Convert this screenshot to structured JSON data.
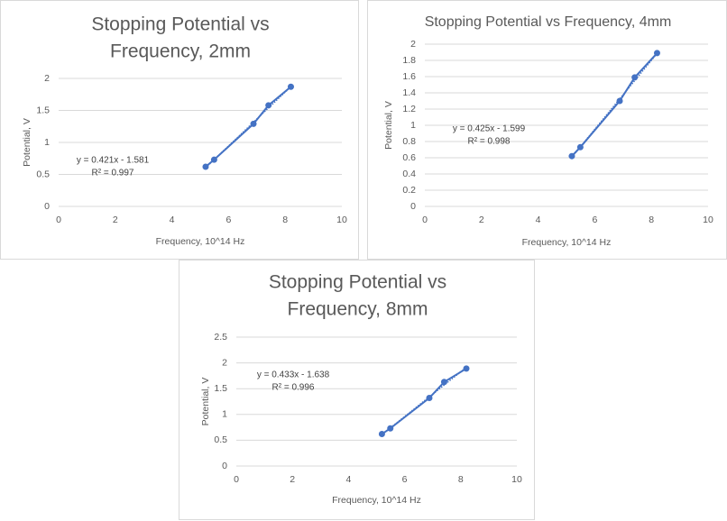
{
  "chart_data": [
    {
      "type": "scatter",
      "title_lines": [
        "Stopping Potential vs",
        "Frequency, 2mm"
      ],
      "xlabel": "Frequency, 10^14 Hz",
      "ylabel": "Potential, V",
      "xlim": [
        0,
        10
      ],
      "ylim": [
        0,
        2
      ],
      "xticks": [
        "0",
        "2",
        "4",
        "6",
        "8",
        "10"
      ],
      "yticks": [
        "0",
        "0.5",
        "1",
        "1.5",
        "2"
      ],
      "grid": true,
      "x": [
        5.19,
        5.49,
        6.88,
        7.41,
        8.2
      ],
      "y": [
        0.62,
        0.73,
        1.29,
        1.58,
        1.87
      ],
      "trendline": {
        "slope": 0.421,
        "intercept": -1.581
      },
      "equation": "y = 0.421x - 1.581",
      "r_squared": "R² = 0.997"
    },
    {
      "type": "scatter",
      "title_lines": [
        "Stopping Potential vs Frequency, 4mm"
      ],
      "xlabel": "Frequency, 10^14 Hz",
      "ylabel": "Potential, V",
      "xlim": [
        0,
        10
      ],
      "ylim": [
        0,
        2
      ],
      "xticks": [
        "0",
        "2",
        "4",
        "6",
        "8",
        "10"
      ],
      "yticks": [
        "0",
        "0.2",
        "0.4",
        "0.6",
        "0.8",
        "1",
        "1.2",
        "1.4",
        "1.6",
        "1.8",
        "2"
      ],
      "grid": true,
      "x": [
        5.19,
        5.49,
        6.88,
        7.41,
        8.2
      ],
      "y": [
        0.62,
        0.73,
        1.3,
        1.59,
        1.89
      ],
      "trendline": {
        "slope": 0.425,
        "intercept": -1.599
      },
      "equation": "y = 0.425x - 1.599",
      "r_squared": "R² = 0.998"
    },
    {
      "type": "scatter",
      "title_lines": [
        "Stopping Potential vs",
        "Frequency, 8mm"
      ],
      "xlabel": "Frequency, 10^14 Hz",
      "ylabel": "Potential, V",
      "xlim": [
        0,
        10
      ],
      "ylim": [
        0,
        2.5
      ],
      "xticks": [
        "0",
        "2",
        "4",
        "6",
        "8",
        "10"
      ],
      "yticks": [
        "0",
        "0.5",
        "1",
        "1.5",
        "2",
        "2.5"
      ],
      "grid": true,
      "x": [
        5.19,
        5.49,
        6.88,
        7.41,
        8.2
      ],
      "y": [
        0.62,
        0.73,
        1.32,
        1.63,
        1.89
      ],
      "trendline": {
        "slope": 0.433,
        "intercept": -1.638
      },
      "equation": "y = 0.433x - 1.638",
      "r_squared": "R² = 0.996"
    }
  ]
}
